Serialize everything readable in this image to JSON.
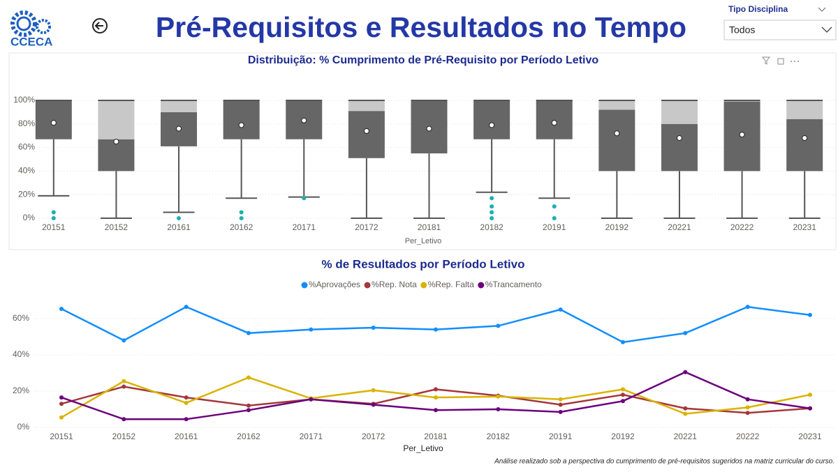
{
  "header": {
    "logo_text": "CCECA",
    "title": "Pré-Requisitos e Resultados no Tempo"
  },
  "filter": {
    "label": "Tipo Disciplina",
    "value": "Todos"
  },
  "chart_data": [
    {
      "type": "box",
      "title": "Distribuição: % Cumprimento de Pré-Requisito por Período Letivo",
      "x_label": "Per_Letivo",
      "categories": [
        "20151",
        "20152",
        "20161",
        "20162",
        "20171",
        "20172",
        "20181",
        "20182",
        "20191",
        "20192",
        "20221",
        "20222",
        "20231"
      ],
      "min": [
        19,
        0,
        5,
        17,
        18,
        0,
        0,
        22,
        17,
        0,
        0,
        0,
        0
      ],
      "q1": [
        67,
        40,
        61,
        67,
        67,
        51,
        55,
        67,
        67,
        40,
        40,
        40,
        40
      ],
      "median": [
        100,
        67,
        90,
        100,
        100,
        91,
        100,
        100,
        100,
        92,
        80,
        99,
        84
      ],
      "q3": [
        100,
        100,
        100,
        100,
        100,
        100,
        100,
        100,
        100,
        100,
        100,
        100,
        100
      ],
      "max": [
        100,
        100,
        100,
        100,
        100,
        100,
        100,
        100,
        100,
        100,
        100,
        100,
        100
      ],
      "mean": [
        81,
        65,
        76,
        79,
        83,
        74,
        76,
        79,
        81,
        72,
        68,
        71,
        68
      ],
      "outliers": [
        [
          5,
          0
        ],
        [],
        [
          0
        ],
        [
          5,
          0
        ],
        [
          17
        ],
        [],
        [],
        [
          17,
          10,
          5,
          0
        ],
        [
          10,
          0
        ],
        [],
        [],
        [],
        []
      ],
      "box_color": "#666666",
      "upper_box_color": "#c8c8c8",
      "mean_color": "#ffffff",
      "outlier_color": "#1aafb0",
      "ylim": [
        0,
        105
      ],
      "yticks": [
        {
          "value": 0,
          "label": "0%"
        },
        {
          "value": 20,
          "label": "20%"
        },
        {
          "value": 40,
          "label": "40%"
        },
        {
          "value": 60,
          "label": "60%"
        },
        {
          "value": 80,
          "label": "80%"
        },
        {
          "value": 100,
          "label": "100%"
        }
      ],
      "grid": true
    },
    {
      "type": "line",
      "title": "% de Resultados por Período Letivo",
      "x_label": "Per_Letivo",
      "categories": [
        "20151",
        "20152",
        "20161",
        "20162",
        "20171",
        "20172",
        "20181",
        "20182",
        "20191",
        "20192",
        "20221",
        "20222",
        "20231"
      ],
      "series": [
        {
          "name": "%Aprovações",
          "color": "#118dff",
          "values": [
            65.4,
            48,
            66.5,
            52,
            54,
            55,
            54,
            56,
            65,
            47,
            52,
            66.5,
            62
          ]
        },
        {
          "name": "%Rep. Nota",
          "color": "#a4373a",
          "values": [
            13,
            22.5,
            16.5,
            12,
            15.5,
            13,
            21,
            17.5,
            12.5,
            18,
            10.5,
            8,
            10.5
          ]
        },
        {
          "name": "%Rep. Falta",
          "color": "#d9b300",
          "values": [
            5.5,
            25.5,
            13.5,
            27.5,
            16,
            20.5,
            16.5,
            17,
            15.5,
            21,
            7.5,
            11,
            18
          ]
        },
        {
          "name": "%Trancamento",
          "color": "#6b007b",
          "values": [
            16.5,
            4.5,
            4.5,
            9.5,
            15.5,
            12.5,
            9.5,
            10,
            8.5,
            14.5,
            30.5,
            15.5,
            10.5
          ]
        }
      ],
      "legend": "top",
      "ylim": [
        0,
        70
      ],
      "yticks": [
        {
          "value": 0,
          "label": "0%"
        },
        {
          "value": 20,
          "label": "20%"
        },
        {
          "value": 40,
          "label": "40%"
        },
        {
          "value": 60,
          "label": "60%"
        }
      ],
      "grid": true
    }
  ],
  "footer": {
    "note": "Análise realizado sob a perspectiva do cumprimento de pré-requisitos sugeridos na matriz curricular do curso."
  }
}
